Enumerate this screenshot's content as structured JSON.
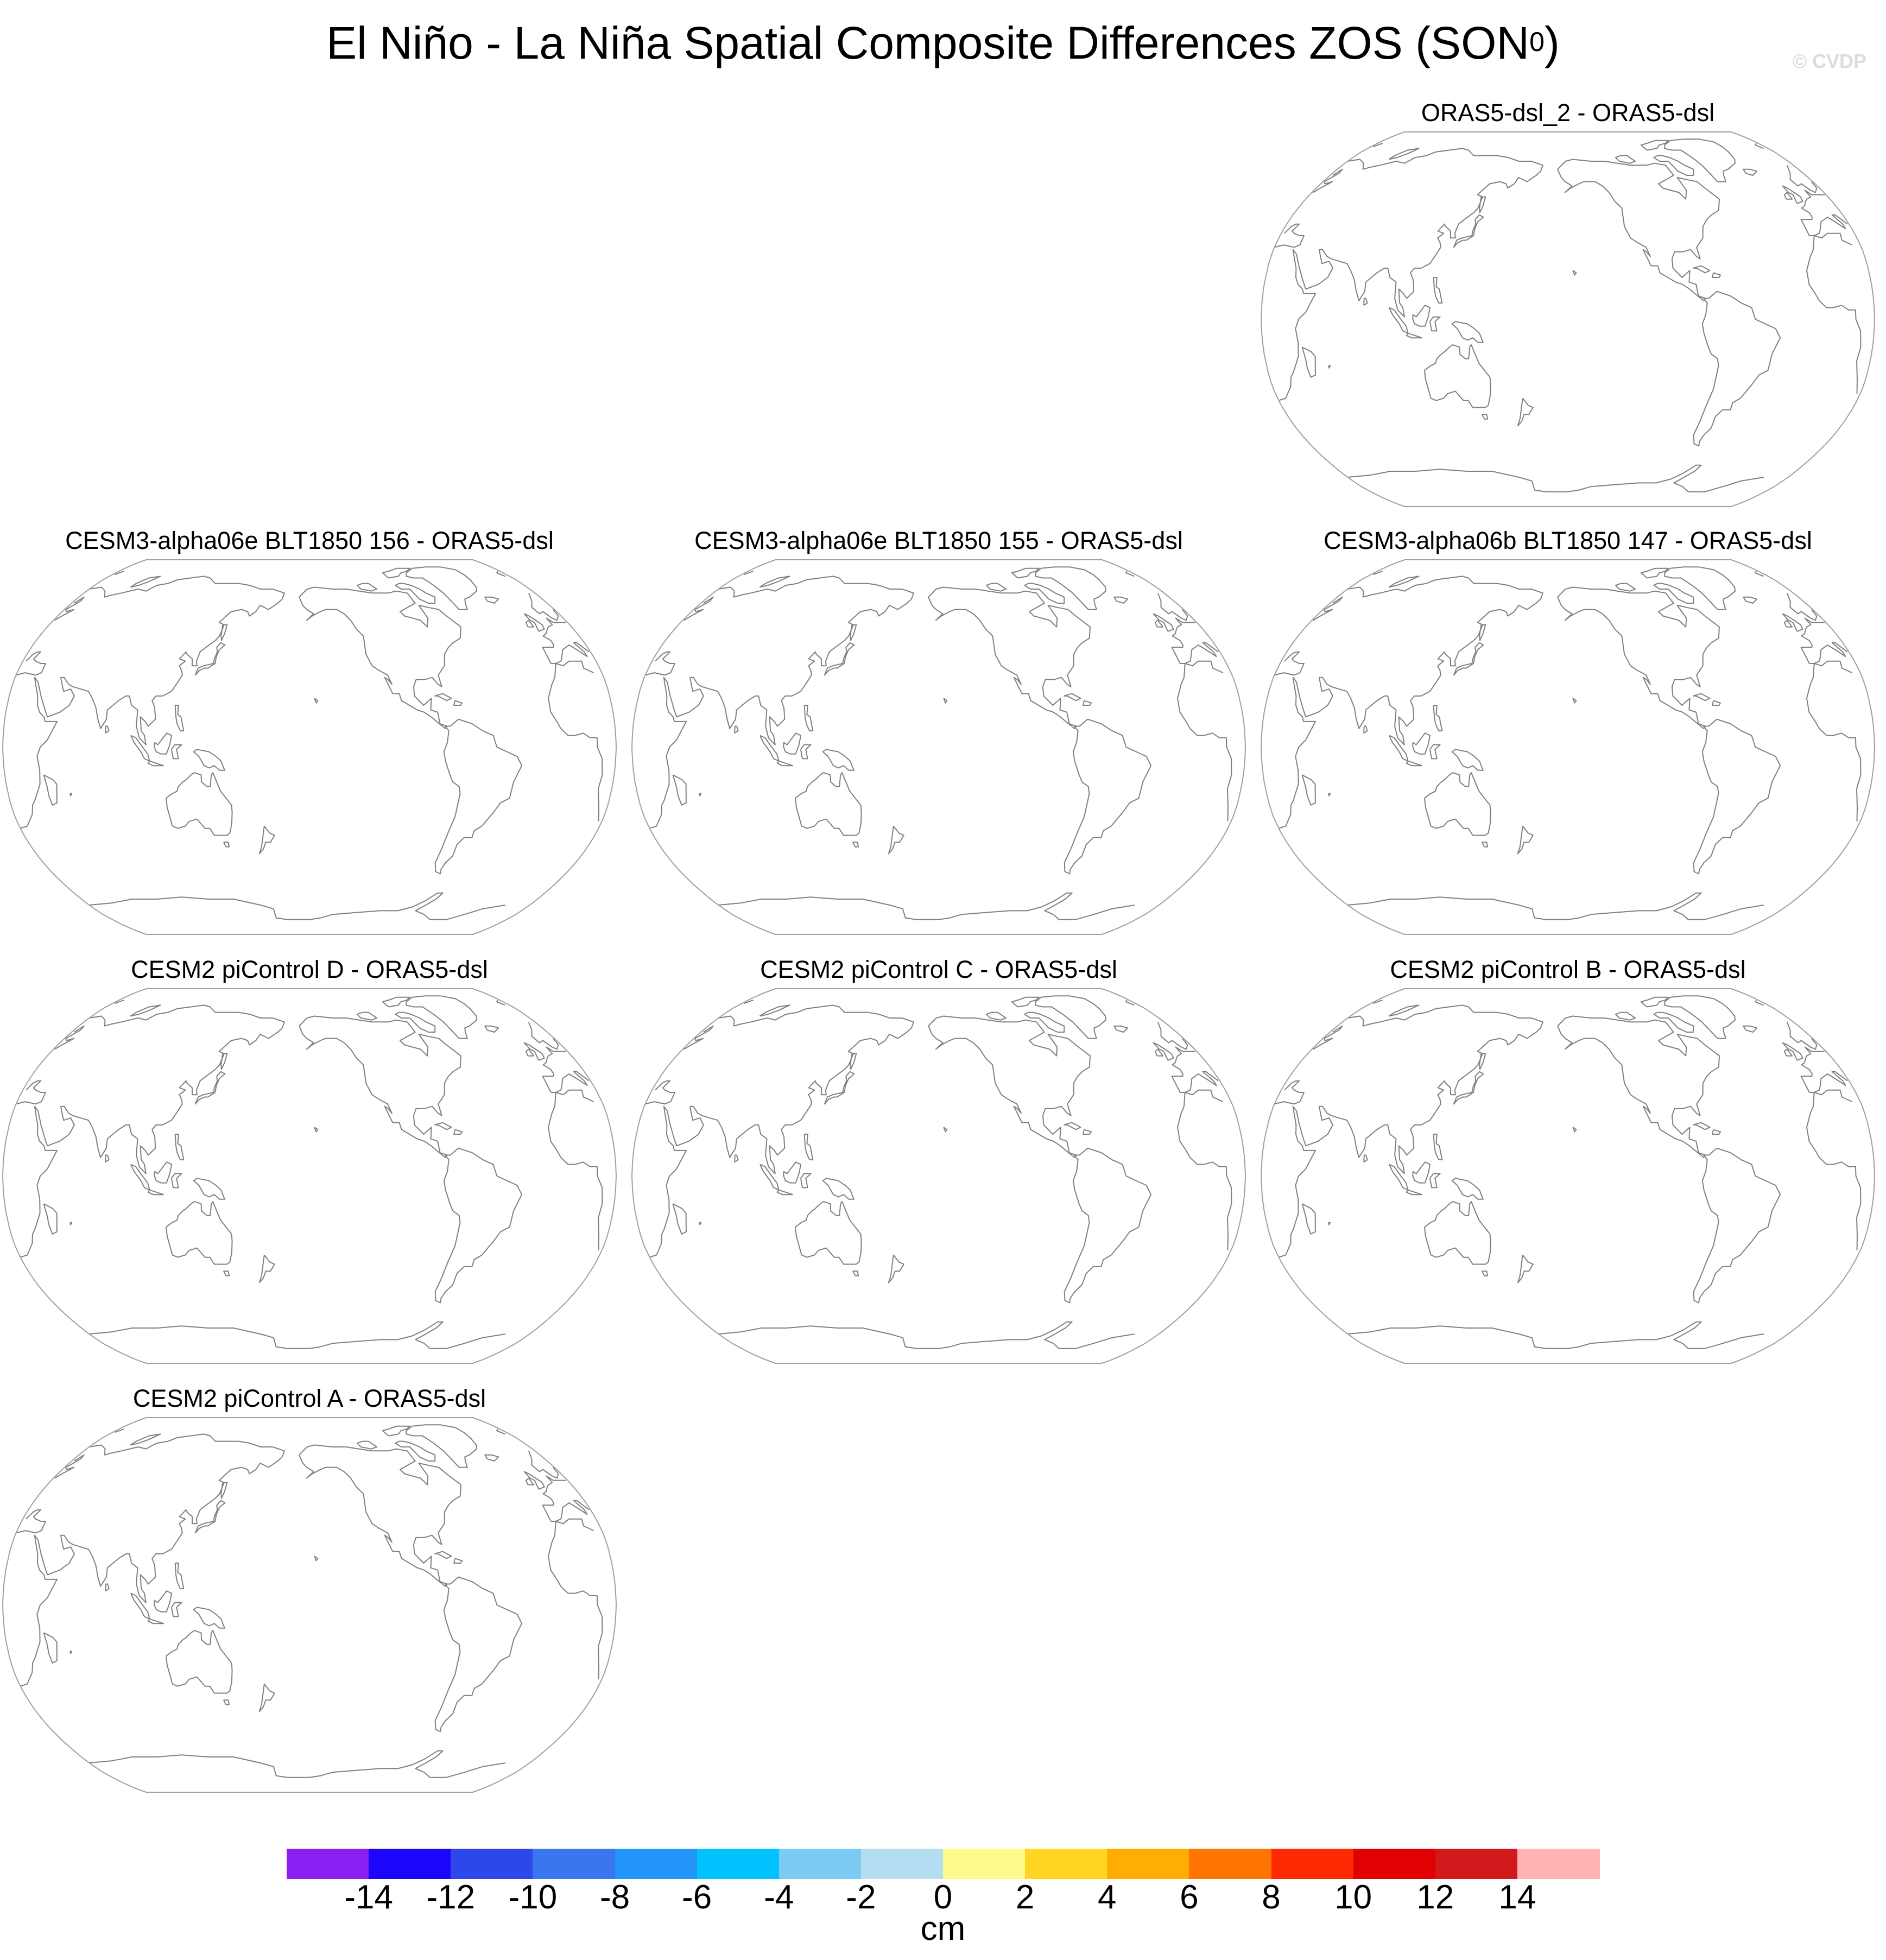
{
  "title": {
    "main": "El Niño - La Niña Spatial Composite Differences ZOS (SON",
    "superscript": "0",
    "close": ")"
  },
  "watermark": "© CVDP",
  "panels": [
    {
      "id": "oras5-dsl-2",
      "title": "ORAS5-dsl_2 - ORAS5-dsl"
    },
    {
      "id": "cesm3-alpha06e-156",
      "title": "CESM3-alpha06e BLT1850 156 - ORAS5-dsl"
    },
    {
      "id": "cesm3-alpha06e-155",
      "title": "CESM3-alpha06e BLT1850 155 - ORAS5-dsl"
    },
    {
      "id": "cesm3-alpha06b-147",
      "title": "CESM3-alpha06b BLT1850 147 - ORAS5-dsl"
    },
    {
      "id": "cesm2-picontrol-d",
      "title": "CESM2 piControl D - ORAS5-dsl"
    },
    {
      "id": "cesm2-picontrol-c",
      "title": "CESM2 piControl C - ORAS5-dsl"
    },
    {
      "id": "cesm2-picontrol-b",
      "title": "CESM2 piControl B - ORAS5-dsl"
    },
    {
      "id": "cesm2-picontrol-a",
      "title": "CESM2 piControl A - ORAS5-dsl"
    }
  ],
  "map_style": {
    "projection": "Robinson, centered on the Pacific",
    "coastline_color": "#808080",
    "outline_color": "#a0a0a0",
    "fill": "none"
  },
  "colorbar": {
    "unit": "cm",
    "tick_labels": [
      "-14",
      "-12",
      "-10",
      "-8",
      "-6",
      "-4",
      "-2",
      "0",
      "2",
      "4",
      "6",
      "8",
      "10",
      "12",
      "14"
    ],
    "colors": [
      "#8a1ff2",
      "#1b06fb",
      "#2e47eb",
      "#3a77ee",
      "#2196f8",
      "#00c2fd",
      "#7ccbf2",
      "#b3def2",
      "#fff98a",
      "#ffd422",
      "#ffad03",
      "#ff7503",
      "#ff2a01",
      "#e10002",
      "#d3191c",
      "#ffb3b3"
    ]
  }
}
